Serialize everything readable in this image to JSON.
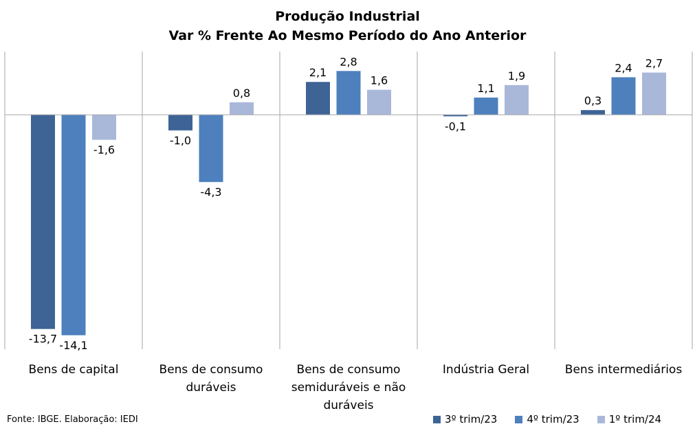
{
  "title_line1": "Produção Industrial",
  "title_line2": "Var % Frente Ao Mesmo Período do Ano Anterior",
  "source": "Fonte: IBGE. Elaboração: IEDI",
  "colors": {
    "series1": "#3e6496",
    "series2": "#4d80bd",
    "series3": "#a9b8d9",
    "grid": "#a6a6a6"
  },
  "chart_data": {
    "type": "bar",
    "title": "Produção Industrial\nVar % Frente Ao Mesmo Período do Ano Anterior",
    "categories": [
      [
        "Bens de capital"
      ],
      [
        "Bens de consumo",
        "duráveis"
      ],
      [
        "Bens de consumo",
        "semiduráveis e não",
        "duráveis"
      ],
      [
        "Indústria Geral"
      ],
      [
        "Bens intermediários"
      ]
    ],
    "series": [
      {
        "name": "3º trim/23",
        "values": [
          -13.7,
          -1.0,
          2.1,
          -0.1,
          0.3
        ],
        "labels": [
          "-13,7",
          "-1,0",
          "2,1",
          "-0,1",
          "0,3"
        ]
      },
      {
        "name": "4º trim/23",
        "values": [
          -14.1,
          -4.3,
          2.8,
          1.1,
          2.4
        ],
        "labels": [
          "-14,1",
          "-4,3",
          "2,8",
          "1,1",
          "2,4"
        ]
      },
      {
        "name": "1º trim/24",
        "values": [
          -1.6,
          0.8,
          1.6,
          1.9,
          2.7
        ],
        "labels": [
          "-1,6",
          "0,8",
          "1,6",
          "1,9",
          "2,7"
        ]
      }
    ],
    "ylim": [
      -15,
      4
    ],
    "grid": "vertical category separators",
    "legend": "bottom-right",
    "xlabel": "",
    "ylabel": ""
  }
}
